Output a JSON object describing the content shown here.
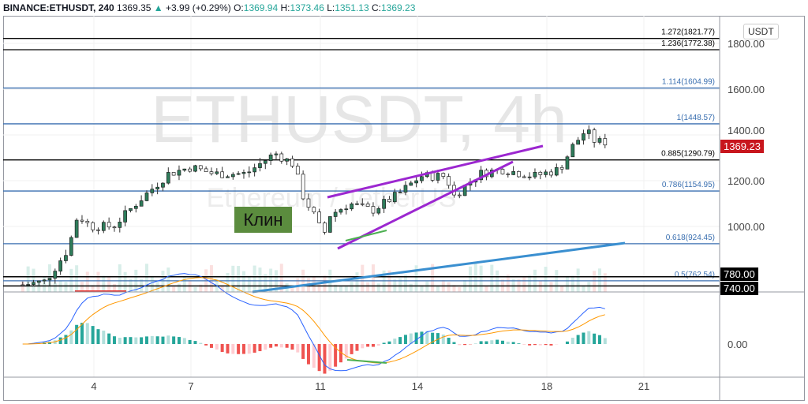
{
  "header": {
    "symbol": "BINANCE:ETHUSDT, 240",
    "last": "1369.35",
    "change": "+3.99 (+0.29%)",
    "o_label": "O:",
    "o": "1369.94",
    "h_label": "H:",
    "h": "1373.46",
    "l_label": "L:",
    "l": "1351.13",
    "c_label": "C:",
    "c": "1369.23"
  },
  "watermark": {
    "title": "ETHUSDT, 4h",
    "subtitle": "Ethereum / TetherUS"
  },
  "annotation": "Клин",
  "currency": "USDT",
  "price_axis": [
    "1800.00",
    "1600.00",
    "1400.00",
    "1200.00",
    "1000.00",
    "0.00"
  ],
  "price_ticks": [
    1800,
    1600,
    1400,
    1200,
    1000
  ],
  "last_price_tag": "1369.23",
  "line_tags": [
    "780.00",
    "740.00"
  ],
  "fib_levels": [
    {
      "label": "1.272(1821.77)",
      "price": 1821.77,
      "color": "#000000"
    },
    {
      "label": "1.236(1772.38)",
      "price": 1772.38,
      "color": "#000000"
    },
    {
      "label": "1.114(1604.99)",
      "price": 1604.99,
      "color": "#3a6fb0"
    },
    {
      "label": "1(1448.57)",
      "price": 1448.57,
      "color": "#3a6fb0"
    },
    {
      "label": "0.885(1290.79)",
      "price": 1290.79,
      "color": "#000000"
    },
    {
      "label": "0.786(1154.95)",
      "price": 1154.95,
      "color": "#3a6fb0"
    },
    {
      "label": "0.618(924.45)",
      "price": 924.45,
      "color": "#3a6fb0"
    },
    {
      "label": "0.5(762.54)",
      "price": 762.54,
      "color": "#3a6fb0"
    }
  ],
  "x_axis": [
    {
      "label": "4",
      "day": 4
    },
    {
      "label": "7",
      "day": 7
    },
    {
      "label": "11",
      "day": 11
    },
    {
      "label": "14",
      "day": 14
    },
    {
      "label": "18",
      "day": 18
    },
    {
      "label": "21",
      "day": 21
    }
  ],
  "price_path": [
    [
      1.8,
      745
    ],
    [
      2.5,
      760
    ],
    [
      3.2,
      900
    ],
    [
      3.5,
      1050
    ],
    [
      3.9,
      1000
    ],
    [
      4.6,
      1000
    ],
    [
      5.3,
      1100
    ],
    [
      6.3,
      1230
    ],
    [
      7.0,
      1260
    ],
    [
      7.7,
      1230
    ],
    [
      8.7,
      1230
    ],
    [
      9.6,
      1320
    ],
    [
      10.2,
      1270
    ],
    [
      10.4,
      1150
    ],
    [
      10.8,
      1050
    ],
    [
      11.1,
      960
    ],
    [
      11.3,
      1050
    ],
    [
      11.9,
      1100
    ],
    [
      12.6,
      1070
    ],
    [
      13.4,
      1140
    ],
    [
      14.1,
      1220
    ],
    [
      14.9,
      1220
    ],
    [
      15.1,
      1130
    ],
    [
      15.9,
      1230
    ],
    [
      16.6,
      1250
    ],
    [
      17.6,
      1220
    ],
    [
      18.4,
      1250
    ],
    [
      18.8,
      1350
    ],
    [
      19.2,
      1420
    ],
    [
      19.5,
      1370
    ],
    [
      19.9,
      1369
    ]
  ],
  "colors": {
    "up": "#26a69a",
    "down": "#ef5350",
    "wedge": "#9c27d0",
    "trend": "#3a8fd0",
    "tag": "#c8161d"
  }
}
